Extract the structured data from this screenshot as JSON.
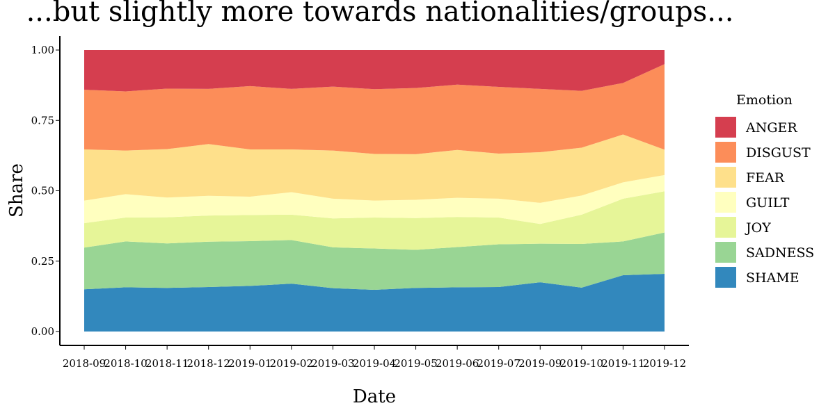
{
  "chart_data": {
    "type": "area",
    "stacked": true,
    "title": "...but slightly more towards nationalities/groups...",
    "xlabel": "Date",
    "ylabel": "Share",
    "ylim": [
      0,
      1
    ],
    "yticks": [
      "0.00",
      "0.25",
      "0.50",
      "0.75",
      "1.00"
    ],
    "categories": [
      "2018-09",
      "2018-10",
      "2018-11",
      "2018-12",
      "2019-01",
      "2019-02",
      "2019-03",
      "2019-04",
      "2019-05",
      "2019-06",
      "2019-07",
      "2019-09",
      "2019-10",
      "2019-11",
      "2019-12"
    ],
    "legend_title": "Emotion",
    "legend_position": "right",
    "grid": false,
    "series": [
      {
        "name": "SHAME",
        "color": "#3288bd",
        "values": [
          0.15,
          0.157,
          0.155,
          0.158,
          0.162,
          0.17,
          0.154,
          0.148,
          0.155,
          0.157,
          0.158,
          0.175,
          0.156,
          0.2,
          0.205
        ]
      },
      {
        "name": "SADNESS",
        "color": "#99d594",
        "values": [
          0.148,
          0.163,
          0.158,
          0.161,
          0.159,
          0.155,
          0.145,
          0.147,
          0.135,
          0.143,
          0.152,
          0.137,
          0.155,
          0.12,
          0.147
        ]
      },
      {
        "name": "JOY",
        "color": "#e6f598",
        "values": [
          0.087,
          0.085,
          0.093,
          0.093,
          0.093,
          0.09,
          0.103,
          0.11,
          0.113,
          0.107,
          0.095,
          0.07,
          0.104,
          0.152,
          0.146
        ]
      },
      {
        "name": "GUILT",
        "color": "#ffffbf",
        "values": [
          0.08,
          0.083,
          0.07,
          0.07,
          0.065,
          0.08,
          0.07,
          0.06,
          0.065,
          0.068,
          0.067,
          0.075,
          0.068,
          0.058,
          0.058
        ]
      },
      {
        "name": "FEAR",
        "color": "#fee08b",
        "values": [
          0.182,
          0.155,
          0.172,
          0.184,
          0.168,
          0.152,
          0.171,
          0.166,
          0.162,
          0.17,
          0.16,
          0.18,
          0.17,
          0.17,
          0.09
        ]
      },
      {
        "name": "DISGUST",
        "color": "#fc8d59",
        "values": [
          0.212,
          0.21,
          0.215,
          0.196,
          0.225,
          0.215,
          0.227,
          0.23,
          0.235,
          0.232,
          0.237,
          0.225,
          0.202,
          0.183,
          0.304
        ]
      },
      {
        "name": "ANGER",
        "color": "#d53e4f",
        "values": [
          0.141,
          0.147,
          0.137,
          0.138,
          0.128,
          0.138,
          0.13,
          0.139,
          0.135,
          0.123,
          0.131,
          0.138,
          0.145,
          0.117,
          0.05
        ]
      }
    ]
  }
}
